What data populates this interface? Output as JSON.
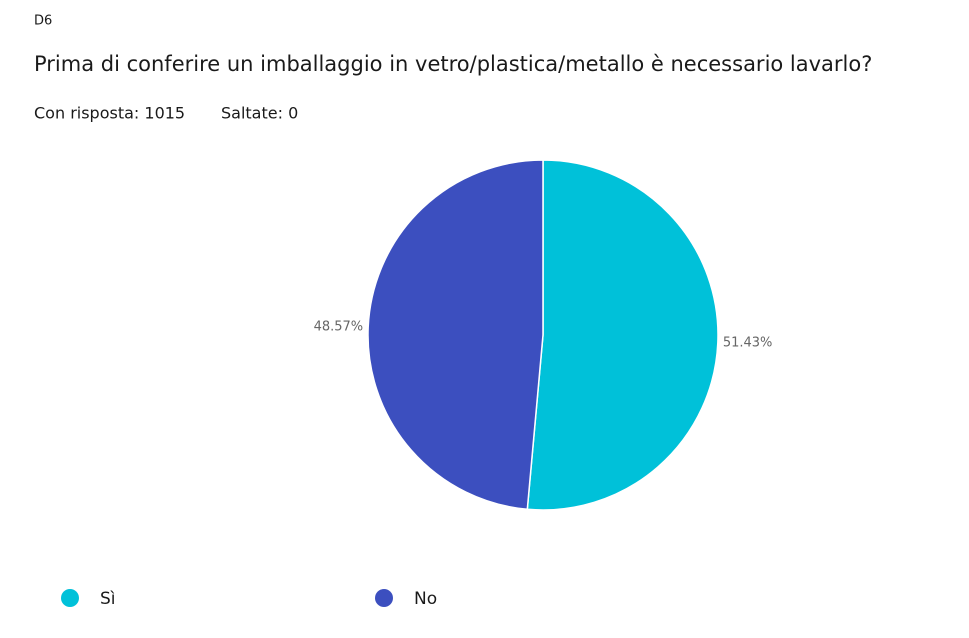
{
  "chart_data": {
    "type": "pie",
    "question_id": "D6",
    "title": "Prima di conferire un imballaggio in vetro/plastica/metallo è necessario lavarlo?",
    "answered": "Con risposta: 1015",
    "skipped": "Saltate: 0",
    "categories": [
      "Sì",
      "No"
    ],
    "values": [
      51.43,
      48.57
    ],
    "value_labels": [
      "51.43%",
      "48.57%"
    ],
    "colors": [
      "#00c1d9",
      "#3c4fbf"
    ]
  }
}
